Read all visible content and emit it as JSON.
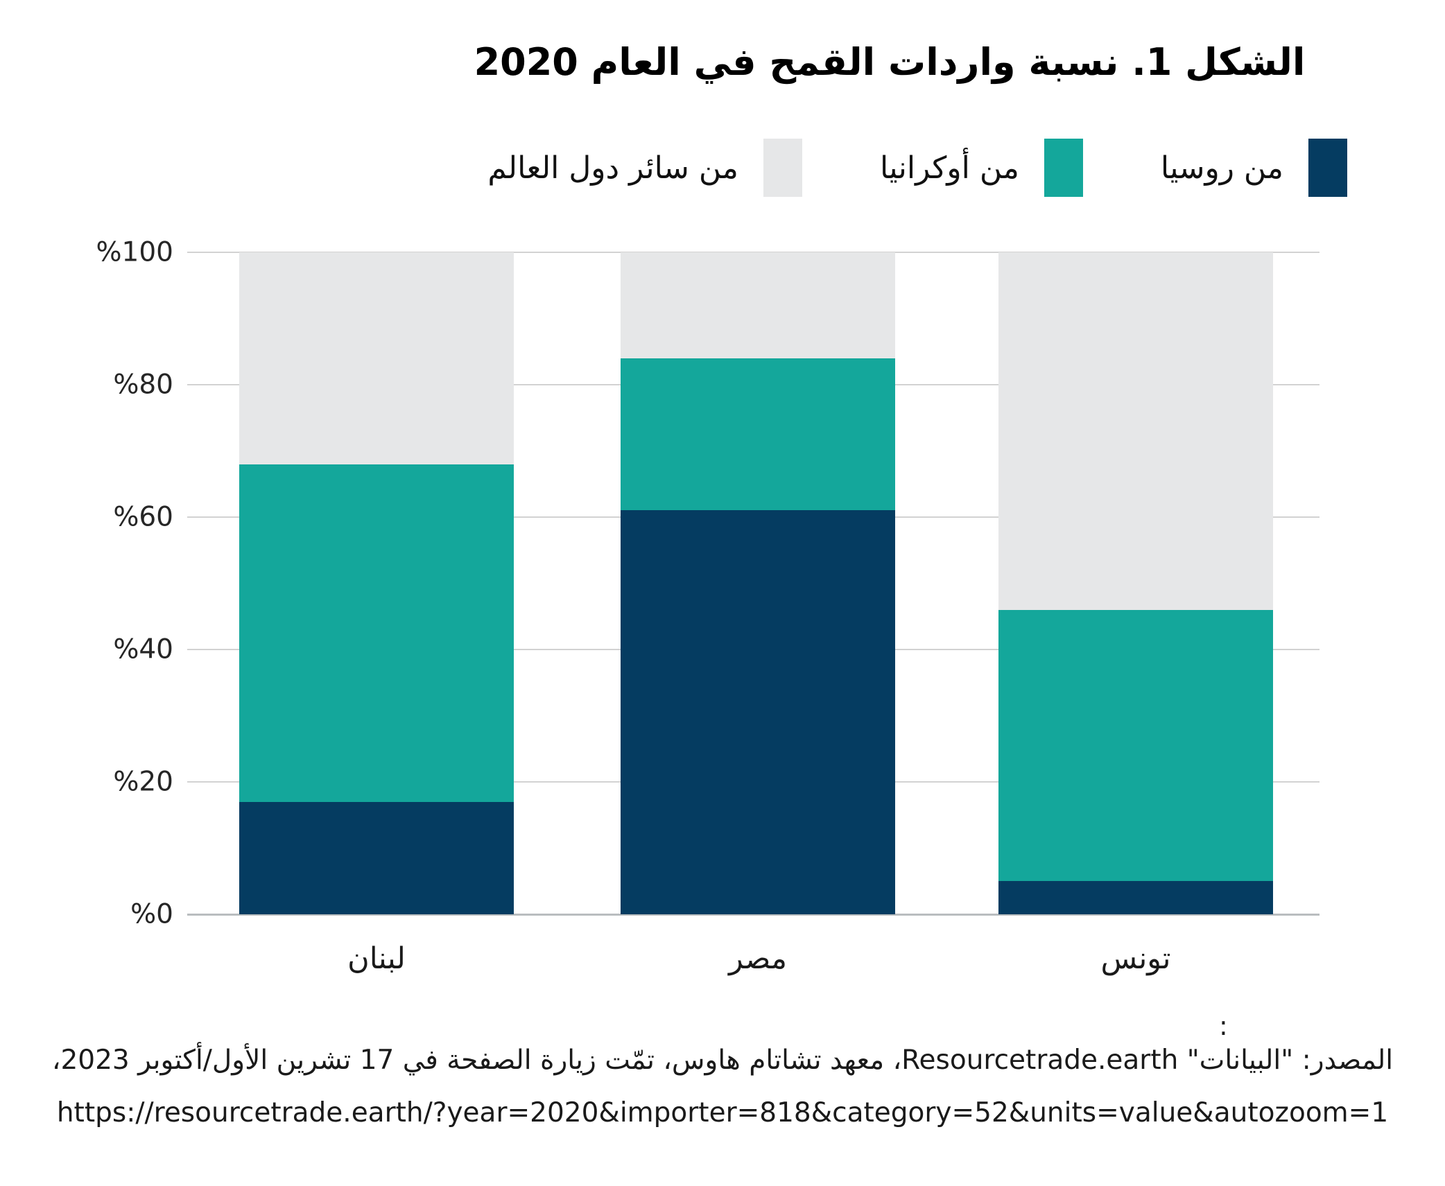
{
  "title": "الشكل 1. نسبة واردات القمح في العام 2020",
  "chart_data": {
    "type": "bar",
    "stacked": true,
    "title": "الشكل 1. نسبة واردات القمح في العام 2020",
    "categories": [
      "لبنان",
      "مصر",
      "تونس"
    ],
    "series": [
      {
        "name": "من روسيا",
        "color": "#053c61",
        "values": [
          17,
          61,
          5
        ]
      },
      {
        "name": "من أوكرانيا",
        "color": "#14a79b",
        "values": [
          51,
          23,
          41
        ]
      },
      {
        "name": "من سائر دول العالم",
        "color": "#e6e7e8",
        "values": [
          32,
          16,
          54
        ]
      }
    ],
    "units": "percent",
    "ylim": [
      0,
      100
    ],
    "yticks": [
      "%0",
      "%20",
      "%40",
      "%60",
      "%80",
      "%100"
    ],
    "grid": true,
    "legend_position": "top-right",
    "gridline_color": "#d2d2d2"
  },
  "source": {
    "colon": ":",
    "line1": "المصدر: \"البيانات\" Resourcetrade.earth، معهد تشاتام هاوس، تمّت زيارة الصفحة في 17 تشرين الأول/أكتوبر 2023،",
    "line2": "https://resourcetrade.earth/?year=2020&importer=818&category=52&units=value&autozoom=1"
  }
}
